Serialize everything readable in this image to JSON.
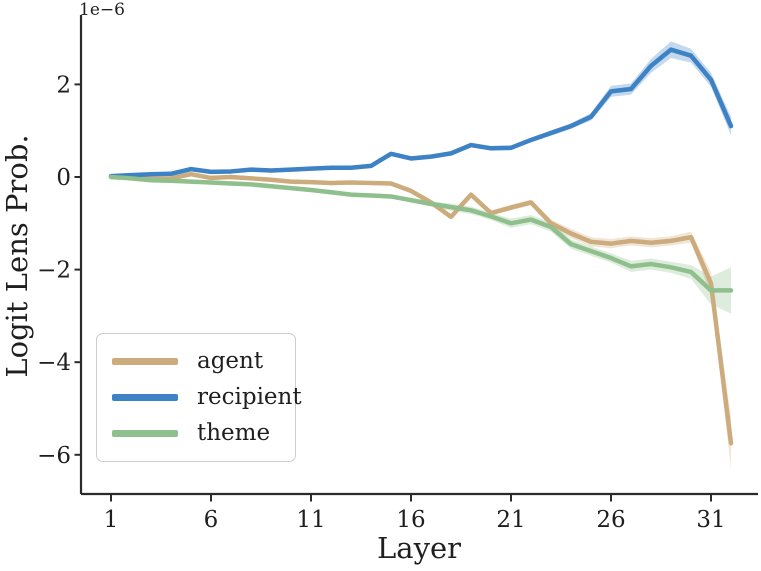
{
  "figure": {
    "background": "#ffffff",
    "text_color": "#1f1f1f",
    "spine_color": "#2b2b2b"
  },
  "chart_data": {
    "type": "line",
    "title": "",
    "xlabel": "Layer",
    "ylabel": "Logit Lens Prob.",
    "offset_text": "1e−6",
    "y_unit_multiplier": "1e-6",
    "grid": false,
    "legend_position": "lower left",
    "legend_border_color": "#cccccc",
    "xlim": [
      -0.5,
      33.35
    ],
    "ylim": [
      -6.85,
      3.5
    ],
    "xticks": [
      1,
      6,
      11,
      16,
      21,
      26,
      31
    ],
    "xtick_labels": [
      "1",
      "6",
      "11",
      "16",
      "21",
      "26",
      "31"
    ],
    "yticks": [
      2,
      0,
      -2,
      -4,
      -6
    ],
    "ytick_labels": [
      "2",
      "0",
      "−2",
      "−4",
      "−6"
    ],
    "x": [
      1,
      2,
      3,
      4,
      5,
      6,
      7,
      8,
      9,
      10,
      11,
      12,
      13,
      14,
      15,
      16,
      17,
      18,
      19,
      20,
      21,
      22,
      23,
      24,
      25,
      26,
      27,
      28,
      29,
      30,
      31,
      32
    ],
    "series": [
      {
        "name": "agent",
        "color": "#ccab7d",
        "values": [
          0.0,
          -0.02,
          -0.04,
          -0.03,
          0.06,
          -0.02,
          0.0,
          -0.03,
          -0.06,
          -0.1,
          -0.11,
          -0.13,
          -0.12,
          -0.13,
          -0.14,
          -0.3,
          -0.55,
          -0.86,
          -0.38,
          -0.78,
          -0.66,
          -0.55,
          -1.0,
          -1.22,
          -1.4,
          -1.44,
          -1.38,
          -1.42,
          -1.38,
          -1.3,
          -2.3,
          -5.75
        ],
        "band_halfwidth": [
          0.02,
          0.02,
          0.02,
          0.02,
          0.02,
          0.02,
          0.02,
          0.02,
          0.02,
          0.03,
          0.03,
          0.03,
          0.04,
          0.04,
          0.04,
          0.05,
          0.06,
          0.06,
          0.06,
          0.06,
          0.06,
          0.06,
          0.08,
          0.1,
          0.1,
          0.1,
          0.1,
          0.1,
          0.1,
          0.12,
          0.25,
          0.55
        ]
      },
      {
        "name": "recipient",
        "color": "#3d82c4",
        "values": [
          0.02,
          0.04,
          0.06,
          0.07,
          0.17,
          0.11,
          0.12,
          0.16,
          0.14,
          0.16,
          0.18,
          0.2,
          0.2,
          0.24,
          0.5,
          0.4,
          0.44,
          0.51,
          0.69,
          0.62,
          0.63,
          0.8,
          0.95,
          1.1,
          1.3,
          1.85,
          1.9,
          2.4,
          2.75,
          2.62,
          2.1,
          1.1
        ],
        "band_halfwidth": [
          0.02,
          0.02,
          0.02,
          0.02,
          0.02,
          0.02,
          0.02,
          0.02,
          0.02,
          0.02,
          0.03,
          0.03,
          0.03,
          0.03,
          0.04,
          0.04,
          0.04,
          0.04,
          0.05,
          0.05,
          0.05,
          0.05,
          0.06,
          0.06,
          0.08,
          0.12,
          0.12,
          0.15,
          0.18,
          0.15,
          0.15,
          0.2
        ]
      },
      {
        "name": "theme",
        "color": "#8fbf8c",
        "values": [
          0.0,
          -0.03,
          -0.07,
          -0.08,
          -0.1,
          -0.12,
          -0.14,
          -0.16,
          -0.2,
          -0.24,
          -0.28,
          -0.33,
          -0.38,
          -0.4,
          -0.42,
          -0.5,
          -0.58,
          -0.65,
          -0.72,
          -0.85,
          -1.0,
          -0.92,
          -1.08,
          -1.45,
          -1.6,
          -1.75,
          -1.93,
          -1.88,
          -1.95,
          -2.05,
          -2.45,
          -2.45
        ],
        "band_halfwidth": [
          0.02,
          0.02,
          0.02,
          0.02,
          0.02,
          0.02,
          0.02,
          0.02,
          0.02,
          0.03,
          0.03,
          0.03,
          0.04,
          0.04,
          0.04,
          0.05,
          0.06,
          0.08,
          0.08,
          0.08,
          0.1,
          0.1,
          0.1,
          0.1,
          0.1,
          0.1,
          0.12,
          0.12,
          0.12,
          0.15,
          0.3,
          0.5
        ]
      }
    ]
  }
}
